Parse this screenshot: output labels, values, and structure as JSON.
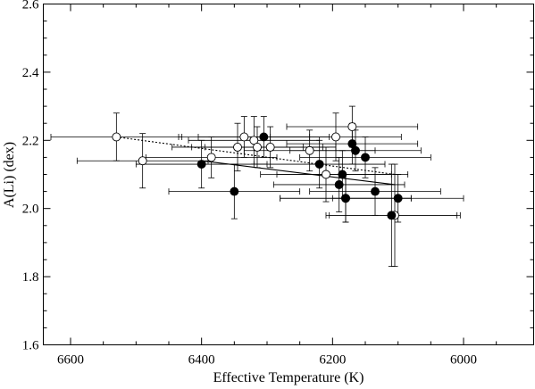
{
  "chart_data": {
    "type": "scatter",
    "title": "",
    "xlabel": "Effective Temperature (K)",
    "ylabel": "A(Li) (dex)",
    "xlim": [
      6650,
      5920
    ],
    "ylim": [
      1.6,
      2.6
    ],
    "x_reversed": true,
    "grid": false,
    "x_ticks": [
      6600,
      6400,
      6200,
      6000
    ],
    "y_ticks": [
      1.6,
      1.8,
      2.0,
      2.2,
      2.4,
      2.6
    ],
    "series": [
      {
        "marker": "open-circle",
        "points": [
          {
            "x": 6530,
            "y": 2.21,
            "xerr": 100,
            "yerr": 0.07
          },
          {
            "x": 6490,
            "y": 2.14,
            "xerr": 100,
            "yerr": 0.08
          },
          {
            "x": 6385,
            "y": 2.15,
            "xerr": 100,
            "yerr": 0.06
          },
          {
            "x": 6345,
            "y": 2.18,
            "xerr": 100,
            "yerr": 0.07
          },
          {
            "x": 6335,
            "y": 2.21,
            "xerr": 100,
            "yerr": 0.06
          },
          {
            "x": 6320,
            "y": 2.2,
            "xerr": 100,
            "yerr": 0.07
          },
          {
            "x": 6315,
            "y": 2.18,
            "xerr": 100,
            "yerr": 0.06
          },
          {
            "x": 6295,
            "y": 2.18,
            "xerr": 100,
            "yerr": 0.06
          },
          {
            "x": 6235,
            "y": 2.17,
            "xerr": 100,
            "yerr": 0.06
          },
          {
            "x": 6210,
            "y": 2.1,
            "xerr": 100,
            "yerr": 0.08
          },
          {
            "x": 6195,
            "y": 2.21,
            "xerr": 100,
            "yerr": 0.07
          },
          {
            "x": 6170,
            "y": 2.24,
            "xerr": 100,
            "yerr": 0.06
          },
          {
            "x": 6180,
            "y": 2.03,
            "xerr": 100,
            "yerr": 0.07
          },
          {
            "x": 6105,
            "y": 1.98,
            "xerr": 100,
            "yerr": 0.15
          }
        ]
      },
      {
        "marker": "filled-circle",
        "points": [
          {
            "x": 6400,
            "y": 2.13,
            "xerr": 100,
            "yerr": 0.07
          },
          {
            "x": 6350,
            "y": 2.05,
            "xerr": 100,
            "yerr": 0.08
          },
          {
            "x": 6305,
            "y": 2.21,
            "xerr": 100,
            "yerr": 0.06
          },
          {
            "x": 6220,
            "y": 2.13,
            "xerr": 100,
            "yerr": 0.07
          },
          {
            "x": 6190,
            "y": 2.07,
            "xerr": 100,
            "yerr": 0.08
          },
          {
            "x": 6185,
            "y": 2.1,
            "xerr": 100,
            "yerr": 0.07
          },
          {
            "x": 6180,
            "y": 2.03,
            "xerr": 100,
            "yerr": 0.07
          },
          {
            "x": 6170,
            "y": 2.19,
            "xerr": 100,
            "yerr": 0.06
          },
          {
            "x": 6165,
            "y": 2.17,
            "xerr": 100,
            "yerr": 0.06
          },
          {
            "x": 6150,
            "y": 2.15,
            "xerr": 100,
            "yerr": 0.06
          },
          {
            "x": 6135,
            "y": 2.05,
            "xerr": 100,
            "yerr": 0.07
          },
          {
            "x": 6110,
            "y": 1.98,
            "xerr": 100,
            "yerr": 0.15
          },
          {
            "x": 6100,
            "y": 2.03,
            "xerr": 100,
            "yerr": 0.07
          }
        ]
      }
    ],
    "fit_lines": [
      {
        "style": "dotted",
        "x": [
          6530,
          6105
        ],
        "y": [
          2.21,
          2.1
        ]
      },
      {
        "style": "solid",
        "x": [
          6400,
          6105
        ],
        "y": [
          2.14,
          2.07
        ]
      }
    ]
  }
}
